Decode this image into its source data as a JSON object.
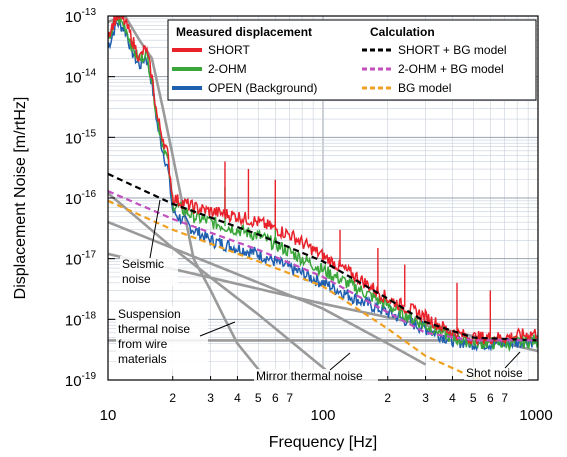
{
  "chart_data": {
    "type": "line",
    "xlabel": "Frequency [Hz]",
    "ylabel": "Displacement Noise [m/rtHz]",
    "xscale": "log",
    "yscale": "log",
    "xlim": [
      10,
      1000
    ],
    "ylim": [
      1e-19,
      1e-13
    ],
    "grid": true,
    "x_major_ticks": [
      {
        "value": 10,
        "label": "10"
      },
      {
        "value": 100,
        "label": "100"
      },
      {
        "value": 1000,
        "label": "1000"
      }
    ],
    "x_minor_ticks": [
      {
        "value": 20,
        "label": "2"
      },
      {
        "value": 30,
        "label": "3"
      },
      {
        "value": 40,
        "label": "4"
      },
      {
        "value": 50,
        "label": "5"
      },
      {
        "value": 60,
        "label": "6"
      },
      {
        "value": 70,
        "label": "7"
      },
      {
        "value": 200,
        "label": "2"
      },
      {
        "value": 300,
        "label": "3"
      },
      {
        "value": 400,
        "label": "4"
      },
      {
        "value": 500,
        "label": "5"
      },
      {
        "value": 600,
        "label": "6"
      },
      {
        "value": 700,
        "label": "7"
      }
    ],
    "y_ticks": [
      {
        "exp": -13,
        "base": "10",
        "sup": "-13"
      },
      {
        "exp": -14,
        "base": "10",
        "sup": "-14"
      },
      {
        "exp": -15,
        "base": "10",
        "sup": "-15"
      },
      {
        "exp": -16,
        "base": "10",
        "sup": "-16"
      },
      {
        "exp": -17,
        "base": "10",
        "sup": "-17"
      },
      {
        "exp": -18,
        "base": "10",
        "sup": "-18"
      },
      {
        "exp": -19,
        "base": "10",
        "sup": "-19"
      }
    ],
    "legend": {
      "placement": "top-right",
      "left_title": "Measured displacement",
      "right_title": "Calculation",
      "measured": [
        {
          "name": "SHORT",
          "color": "#e8212a"
        },
        {
          "name": "2-OHM",
          "color": "#3aa63a"
        },
        {
          "name": "OPEN (Background)",
          "color": "#1f5fb0"
        }
      ],
      "calculated": [
        {
          "name": "SHORT + BG model",
          "color": "#000000"
        },
        {
          "name": "2-OHM + BG model",
          "color": "#c24fbf"
        },
        {
          "name": "BG model",
          "color": "#f0a020"
        }
      ]
    },
    "series": [
      {
        "name": "SHORT",
        "style": "measured",
        "color": "#e8212a",
        "x": [
          10,
          11,
          12,
          13,
          14,
          15,
          16,
          17,
          18,
          19,
          20,
          25,
          30,
          40,
          50,
          70,
          100,
          150,
          200,
          300,
          400,
          500,
          700,
          1000
        ],
        "y": [
          5e-14,
          1e-13,
          8e-14,
          4e-14,
          2e-14,
          3e-14,
          1e-14,
          2e-15,
          1e-15,
          5e-16,
          1e-16,
          7e-17,
          6e-17,
          5e-17,
          4e-17,
          2.5e-17,
          1.1e-17,
          4.5e-18,
          2.2e-18,
          1.1e-18,
          6e-19,
          5e-19,
          5e-19,
          6e-19
        ],
        "spikes": [
          {
            "x": 35,
            "y": 4e-16
          },
          {
            "x": 45,
            "y": 3e-16
          },
          {
            "x": 60,
            "y": 2e-16
          },
          {
            "x": 120,
            "y": 3e-17
          },
          {
            "x": 180,
            "y": 1.5e-17
          },
          {
            "x": 240,
            "y": 8e-18
          },
          {
            "x": 420,
            "y": 4e-18
          },
          {
            "x": 600,
            "y": 3e-18
          }
        ]
      },
      {
        "name": "2-OHM",
        "style": "measured",
        "color": "#3aa63a",
        "x": [
          10,
          11,
          12,
          13,
          14,
          15,
          16,
          17,
          18,
          19,
          20,
          25,
          30,
          40,
          50,
          70,
          100,
          150,
          200,
          300,
          400,
          500,
          700,
          1000
        ],
        "y": [
          4e-14,
          9e-14,
          7e-14,
          3e-14,
          1.8e-14,
          2.6e-14,
          9e-15,
          1.8e-15,
          8e-16,
          4e-16,
          8e-17,
          5e-17,
          4e-17,
          3e-17,
          2.4e-17,
          1.3e-17,
          6.5e-18,
          3e-18,
          1.7e-18,
          8e-19,
          5e-19,
          4.2e-19,
          4e-19,
          4.5e-19
        ],
        "spikes": [
          {
            "x": 35,
            "y": 1.5e-16
          },
          {
            "x": 60,
            "y": 8e-17
          }
        ]
      },
      {
        "name": "OPEN (Background)",
        "style": "measured",
        "color": "#1f5fb0",
        "x": [
          10,
          11,
          12,
          13,
          14,
          15,
          16,
          17,
          18,
          19,
          20,
          25,
          30,
          40,
          50,
          70,
          100,
          150,
          200,
          300,
          400,
          500,
          700,
          1000
        ],
        "y": [
          3e-14,
          8e-14,
          6e-14,
          2.5e-14,
          1.5e-14,
          2.2e-14,
          8e-15,
          1.5e-15,
          6e-16,
          3e-16,
          6e-17,
          3e-17,
          2e-17,
          1.5e-17,
          1.2e-17,
          7e-18,
          4e-18,
          2e-18,
          1.3e-18,
          7e-19,
          4.5e-19,
          4e-19,
          4e-19,
          4.5e-19
        ],
        "spikes": []
      },
      {
        "name": "SHORT + BG model",
        "style": "dashed",
        "color": "#000000",
        "x": [
          10,
          20,
          50,
          100,
          200,
          300,
          500,
          1000
        ],
        "y": [
          2.5e-16,
          8e-17,
          2.5e-17,
          9e-18,
          2.2e-18,
          9e-19,
          5e-19,
          4.5e-19
        ]
      },
      {
        "name": "2-OHM + BG model",
        "style": "dashed",
        "color": "#c24fbf",
        "x": [
          10,
          20,
          50,
          100,
          200,
          300,
          500,
          1000
        ],
        "y": [
          1.3e-16,
          4.5e-17,
          1.4e-17,
          5e-18,
          1.3e-18,
          6e-19,
          4.5e-19,
          4.5e-19
        ]
      },
      {
        "name": "BG model",
        "style": "dashed",
        "color": "#f0a020",
        "x": [
          10,
          20,
          50,
          100,
          200,
          300,
          500,
          1000
        ],
        "y": [
          9e-17,
          3e-17,
          9e-18,
          3.5e-18,
          7e-19,
          2.5e-19,
          1.1e-19,
          7e-20
        ]
      }
    ],
    "model_lines": [
      {
        "name": "seismic",
        "x": [
          10,
          12,
          14,
          16,
          18,
          20,
          25,
          30,
          35,
          40,
          50,
          60
        ],
        "y": [
          8e-14,
          1e-13,
          4e-14,
          2e-14,
          3e-15,
          5e-16,
          1e-17,
          3e-18,
          1e-18,
          4e-19,
          1.5e-19,
          1e-19
        ]
      },
      {
        "name": "suspension",
        "x": [
          10,
          20,
          50,
          100,
          200,
          300
        ],
        "y": [
          1.2e-16,
          1.5e-17,
          1.2e-18,
          1.6e-19,
          2e-20,
          6e-21
        ]
      },
      {
        "name": "wire",
        "x": [
          10,
          100,
          200,
          300
        ],
        "y": [
          4e-17,
          1.5e-18,
          4e-19,
          1.8e-19
        ]
      },
      {
        "name": "mirror",
        "x": [
          10,
          100,
          300,
          1000
        ],
        "y": [
          1.2e-17,
          1.8e-18,
          8e-19,
          3e-19
        ]
      },
      {
        "name": "shot",
        "x": [
          10,
          1000
        ],
        "y": [
          4.5e-19,
          4.5e-19
        ]
      }
    ],
    "annotations": [
      {
        "lines": [
          "Seismic",
          "noise"
        ]
      },
      {
        "lines": [
          "Suspension",
          "thermal noise",
          "from wire",
          "materials"
        ]
      },
      {
        "lines": [
          "Mirror thermal noise"
        ]
      },
      {
        "lines": [
          "Shot noise"
        ]
      }
    ]
  }
}
